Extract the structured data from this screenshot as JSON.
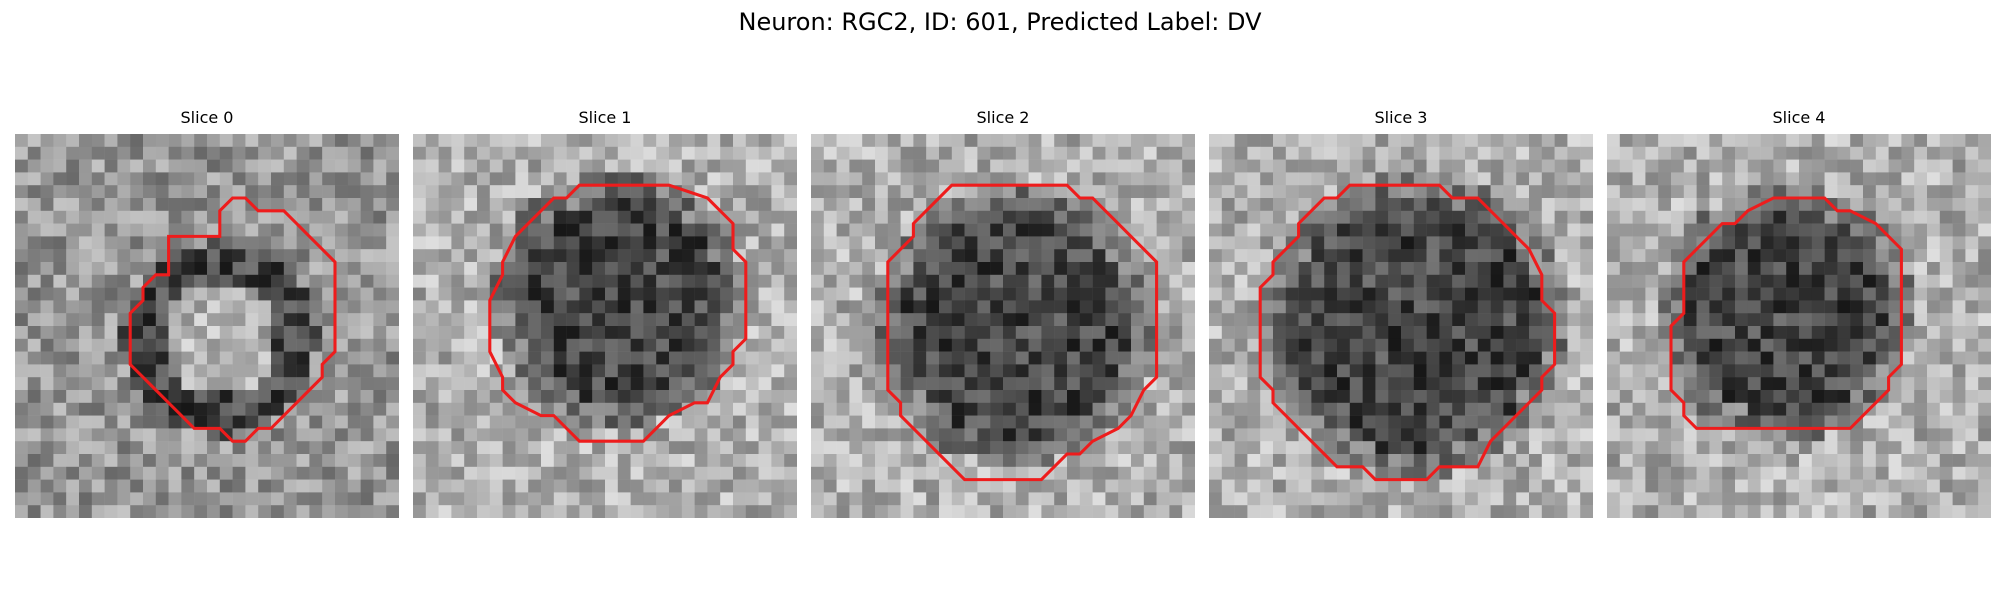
{
  "figure": {
    "title": "Neuron: RGC2, ID: 601, Predicted Label: DV"
  },
  "panels": [
    {
      "title": "Slice 0",
      "contour_color": "#ee1c1c"
    },
    {
      "title": "Slice 1",
      "contour_color": "#ee1c1c"
    },
    {
      "title": "Slice 2",
      "contour_color": "#ee1c1c"
    },
    {
      "title": "Slice 3",
      "contour_color": "#ee1c1c"
    },
    {
      "title": "Slice 4",
      "contour_color": "#ee1c1c"
    }
  ],
  "image": {
    "colormap": "gray",
    "grid_size": 30
  }
}
